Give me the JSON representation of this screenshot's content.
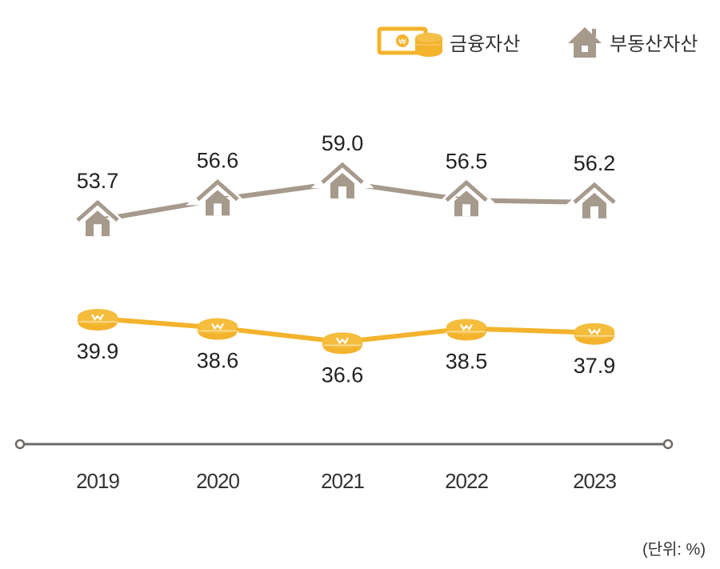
{
  "chart_data": {
    "type": "line",
    "title": "",
    "xlabel": "",
    "ylabel": "",
    "x": [
      "2019",
      "2020",
      "2021",
      "2022",
      "2023"
    ],
    "series": [
      {
        "name": "부동산자산",
        "values": [
          53.7,
          56.6,
          59.0,
          56.5,
          56.2
        ],
        "color": "#a69a8c",
        "marker": "house-icon"
      },
      {
        "name": "금융자산",
        "values": [
          39.9,
          38.6,
          36.6,
          38.5,
          37.9
        ],
        "color": "#f3b32d",
        "marker": "coin-icon"
      }
    ],
    "legend": {
      "placement": "top-right",
      "entries": [
        "금융자산",
        "부동산자산"
      ]
    },
    "unit_note": "(단위: %)",
    "grid": false
  }
}
